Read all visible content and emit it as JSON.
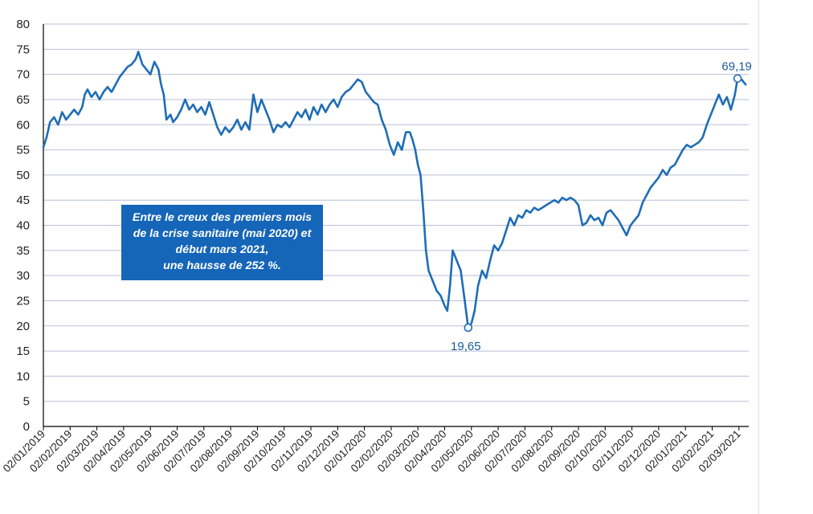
{
  "chart_data": {
    "type": "line",
    "title": "",
    "xlabel": "",
    "ylabel": "",
    "ylim": [
      0,
      80
    ],
    "yticks": [
      "0",
      "5",
      "10",
      "15",
      "20",
      "25",
      "30",
      "35",
      "40",
      "45",
      "50",
      "55",
      "60",
      "65",
      "70",
      "75",
      "80"
    ],
    "xticks": [
      "02/01/2019",
      "02/02/2019",
      "02/03/2019",
      "02/04/2019",
      "02/05/2019",
      "02/06/2019",
      "02/07/2019",
      "02/08/2019",
      "02/09/2019",
      "02/10/2019",
      "02/11/2019",
      "02/12/2019",
      "02/01/2020",
      "02/02/2020",
      "02/03/2020",
      "02/04/2020",
      "02/05/2020",
      "02/06/2020",
      "02/07/2020",
      "02/08/2020",
      "02/09/2020",
      "02/10/2020",
      "02/11/2020",
      "02/12/2020",
      "02/01/2021",
      "02/02/2021",
      "02/03/2021"
    ],
    "grid": true,
    "line_color": "#1f6db5",
    "series": [
      {
        "values": [
          [
            0,
            55.5
          ],
          [
            0.12,
            57.5
          ],
          [
            0.25,
            60.5
          ],
          [
            0.4,
            61.5
          ],
          [
            0.55,
            60
          ],
          [
            0.7,
            62.5
          ],
          [
            0.85,
            61
          ],
          [
            1.0,
            62
          ],
          [
            1.15,
            63
          ],
          [
            1.3,
            62
          ],
          [
            1.45,
            63.5
          ],
          [
            1.55,
            66
          ],
          [
            1.65,
            67
          ],
          [
            1.8,
            65.5
          ],
          [
            1.95,
            66.5
          ],
          [
            2.1,
            65
          ],
          [
            2.25,
            66.5
          ],
          [
            2.4,
            67.5
          ],
          [
            2.55,
            66.5
          ],
          [
            2.7,
            68
          ],
          [
            2.85,
            69.5
          ],
          [
            3.0,
            70.5
          ],
          [
            3.15,
            71.5
          ],
          [
            3.3,
            72
          ],
          [
            3.45,
            73
          ],
          [
            3.55,
            74.5
          ],
          [
            3.7,
            72
          ],
          [
            3.85,
            71
          ],
          [
            4.0,
            70
          ],
          [
            4.15,
            72.5
          ],
          [
            4.3,
            71
          ],
          [
            4.4,
            68
          ],
          [
            4.5,
            66
          ],
          [
            4.6,
            61
          ],
          [
            4.75,
            62
          ],
          [
            4.85,
            60.5
          ],
          [
            5.0,
            61.5
          ],
          [
            5.15,
            63
          ],
          [
            5.3,
            65
          ],
          [
            5.45,
            63
          ],
          [
            5.6,
            64
          ],
          [
            5.75,
            62.5
          ],
          [
            5.9,
            63.5
          ],
          [
            6.05,
            62
          ],
          [
            6.2,
            64.5
          ],
          [
            6.35,
            62
          ],
          [
            6.5,
            59.5
          ],
          [
            6.65,
            58
          ],
          [
            6.8,
            59.5
          ],
          [
            6.95,
            58.5
          ],
          [
            7.1,
            59.5
          ],
          [
            7.25,
            61
          ],
          [
            7.4,
            59
          ],
          [
            7.55,
            60.5
          ],
          [
            7.7,
            59
          ],
          [
            7.85,
            66
          ],
          [
            8.0,
            62.5
          ],
          [
            8.15,
            65
          ],
          [
            8.3,
            63
          ],
          [
            8.45,
            61
          ],
          [
            8.6,
            58.5
          ],
          [
            8.75,
            60
          ],
          [
            8.9,
            59.5
          ],
          [
            9.05,
            60.5
          ],
          [
            9.2,
            59.5
          ],
          [
            9.35,
            61
          ],
          [
            9.5,
            62.5
          ],
          [
            9.65,
            61.5
          ],
          [
            9.8,
            63
          ],
          [
            9.95,
            61
          ],
          [
            10.1,
            63.5
          ],
          [
            10.25,
            62
          ],
          [
            10.4,
            64
          ],
          [
            10.55,
            62.5
          ],
          [
            10.7,
            64
          ],
          [
            10.85,
            65
          ],
          [
            11.0,
            63.5
          ],
          [
            11.15,
            65.5
          ],
          [
            11.3,
            66.5
          ],
          [
            11.45,
            67
          ],
          [
            11.6,
            68
          ],
          [
            11.75,
            69
          ],
          [
            11.9,
            68.5
          ],
          [
            12.05,
            66.5
          ],
          [
            12.2,
            65.5
          ],
          [
            12.35,
            64.5
          ],
          [
            12.5,
            64
          ],
          [
            12.65,
            61
          ],
          [
            12.8,
            59
          ],
          [
            12.95,
            56
          ],
          [
            13.1,
            54
          ],
          [
            13.25,
            56.5
          ],
          [
            13.4,
            55
          ],
          [
            13.55,
            58.5
          ],
          [
            13.7,
            58.5
          ],
          [
            13.8,
            57
          ],
          [
            13.9,
            55
          ],
          [
            14.0,
            52
          ],
          [
            14.1,
            50
          ],
          [
            14.2,
            43
          ],
          [
            14.3,
            35
          ],
          [
            14.4,
            31
          ],
          [
            14.55,
            29
          ],
          [
            14.7,
            27
          ],
          [
            14.85,
            26
          ],
          [
            15.0,
            24
          ],
          [
            15.1,
            23
          ],
          [
            15.2,
            28
          ],
          [
            15.3,
            35
          ],
          [
            15.45,
            33
          ],
          [
            15.6,
            31
          ],
          [
            15.75,
            25
          ],
          [
            15.88,
            19.65
          ],
          [
            16.0,
            20.5
          ],
          [
            16.12,
            23
          ],
          [
            16.25,
            28
          ],
          [
            16.4,
            31
          ],
          [
            16.55,
            29.5
          ],
          [
            16.7,
            33
          ],
          [
            16.85,
            36
          ],
          [
            17.0,
            35
          ],
          [
            17.15,
            36.5
          ],
          [
            17.3,
            39
          ],
          [
            17.45,
            41.5
          ],
          [
            17.6,
            40
          ],
          [
            17.75,
            42
          ],
          [
            17.9,
            41.5
          ],
          [
            18.05,
            43
          ],
          [
            18.2,
            42.5
          ],
          [
            18.35,
            43.5
          ],
          [
            18.5,
            43
          ],
          [
            18.65,
            43.5
          ],
          [
            18.8,
            44
          ],
          [
            18.95,
            44.5
          ],
          [
            19.1,
            45
          ],
          [
            19.25,
            44.5
          ],
          [
            19.4,
            45.5
          ],
          [
            19.55,
            45
          ],
          [
            19.7,
            45.5
          ],
          [
            19.85,
            45
          ],
          [
            20.0,
            44
          ],
          [
            20.15,
            40
          ],
          [
            20.3,
            40.5
          ],
          [
            20.45,
            42
          ],
          [
            20.6,
            41
          ],
          [
            20.75,
            41.5
          ],
          [
            20.9,
            40
          ],
          [
            21.05,
            42.5
          ],
          [
            21.2,
            43
          ],
          [
            21.35,
            42
          ],
          [
            21.5,
            41
          ],
          [
            21.65,
            39.5
          ],
          [
            21.8,
            38
          ],
          [
            21.95,
            40
          ],
          [
            22.1,
            41
          ],
          [
            22.25,
            42
          ],
          [
            22.4,
            44.5
          ],
          [
            22.55,
            46
          ],
          [
            22.7,
            47.5
          ],
          [
            22.85,
            48.5
          ],
          [
            23.0,
            49.5
          ],
          [
            23.15,
            51
          ],
          [
            23.3,
            50
          ],
          [
            23.45,
            51.5
          ],
          [
            23.6,
            52
          ],
          [
            23.75,
            53.5
          ],
          [
            23.9,
            55
          ],
          [
            24.05,
            56
          ],
          [
            24.2,
            55.5
          ],
          [
            24.35,
            56
          ],
          [
            24.5,
            56.5
          ],
          [
            24.65,
            57.5
          ],
          [
            24.8,
            60
          ],
          [
            24.95,
            62
          ],
          [
            25.1,
            64
          ],
          [
            25.25,
            66
          ],
          [
            25.4,
            64
          ],
          [
            25.55,
            65.5
          ],
          [
            25.7,
            63
          ],
          [
            25.85,
            66
          ],
          [
            25.95,
            69.19
          ],
          [
            26.1,
            69
          ],
          [
            26.25,
            68
          ]
        ]
      }
    ],
    "annotations": [
      {
        "label": "19,65",
        "x": 15.88,
        "y": 19.65
      },
      {
        "label": "69,19",
        "x": 25.95,
        "y": 69.19
      }
    ],
    "callout": [
      "Entre le creux des premiers mois",
      "de la crise sanitaire (mai 2020) et",
      "début mars 2021,",
      "une hausse de 252 %."
    ]
  }
}
